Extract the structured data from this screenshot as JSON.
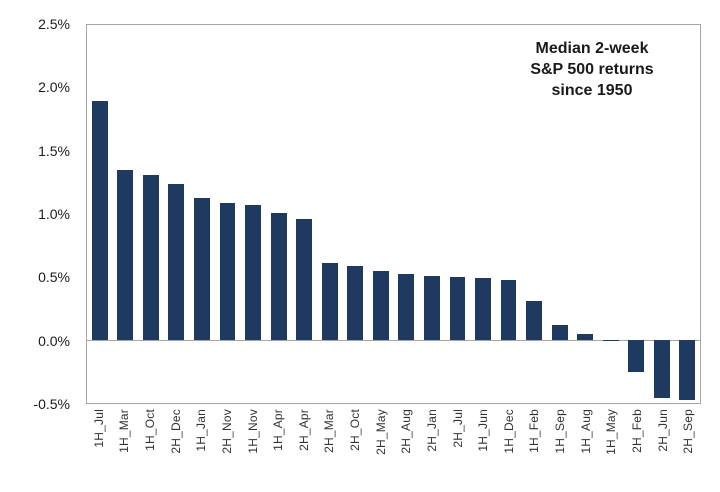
{
  "chart_data": {
    "type": "bar",
    "title": "Median 2-week S&P 500 returns since 1950",
    "title_lines": [
      "Median 2-week",
      "S&P 500 returns",
      "since 1950"
    ],
    "unit": "%",
    "categories": [
      "1H_Jul",
      "1H_Mar",
      "1H_Oct",
      "2H_Dec",
      "1H_Jan",
      "2H_Nov",
      "1H_Nov",
      "1H_Apr",
      "2H_Apr",
      "2H_Mar",
      "2H_Oct",
      "2H_May",
      "2H_Aug",
      "2H_Jan",
      "2H_Jul",
      "1H_Jun",
      "1H_Dec",
      "1H_Feb",
      "1H_Sep",
      "1H_Aug",
      "1H_May",
      "2H_Feb",
      "2H_Jun",
      "2H_Sep"
    ],
    "values": [
      1.9,
      1.35,
      1.31,
      1.24,
      1.13,
      1.09,
      1.07,
      1.01,
      0.96,
      0.61,
      0.59,
      0.55,
      0.52,
      0.51,
      0.5,
      0.49,
      0.48,
      0.31,
      0.12,
      0.05,
      -0.01,
      -0.25,
      -0.46,
      -0.48
    ],
    "ylim": [
      -0.5,
      2.5
    ],
    "yticks": [
      {
        "value": 2.5,
        "label": "2.5%"
      },
      {
        "value": 2.0,
        "label": "2.0%"
      },
      {
        "value": 1.5,
        "label": "1.5%"
      },
      {
        "value": 1.0,
        "label": "1.0%"
      },
      {
        "value": 0.5,
        "label": "0.5%"
      },
      {
        "value": 0.0,
        "label": "0.0%"
      },
      {
        "value": -0.5,
        "label": "-0.5%"
      }
    ],
    "xlabel": "",
    "ylabel": "",
    "grid": "none",
    "legend_position": "none",
    "colors": {
      "bar": "#1e3a60",
      "frame": "#a6a6a6",
      "zero_line": "#a6a6a6",
      "title_text": "#1a1a1a",
      "tick_text": "#333333",
      "background": "#ffffff"
    }
  }
}
